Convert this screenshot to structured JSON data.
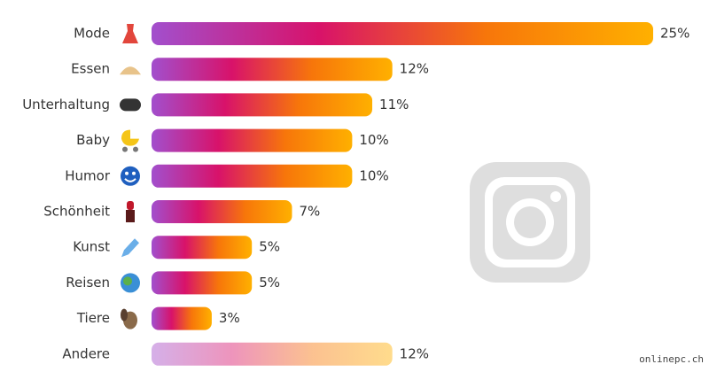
{
  "chart_data": {
    "type": "bar",
    "orientation": "horizontal",
    "categories": [
      "Mode",
      "Essen",
      "Unterhaltung",
      "Baby",
      "Humor",
      "Schönheit",
      "Kunst",
      "Reisen",
      "Tiere",
      "Andere"
    ],
    "values": [
      25,
      12,
      11,
      10,
      10,
      7,
      5,
      5,
      3,
      12
    ],
    "value_labels": [
      "25%",
      "12%",
      "11%",
      "10%",
      "10%",
      "7%",
      "5%",
      "5%",
      "3%",
      "12%"
    ],
    "gradient": [
      "#a24fcd",
      "#d8126a",
      "#f7760a",
      "#ffb000"
    ],
    "xlim": [
      0,
      25
    ],
    "watermark": "onlinepc.ch"
  }
}
